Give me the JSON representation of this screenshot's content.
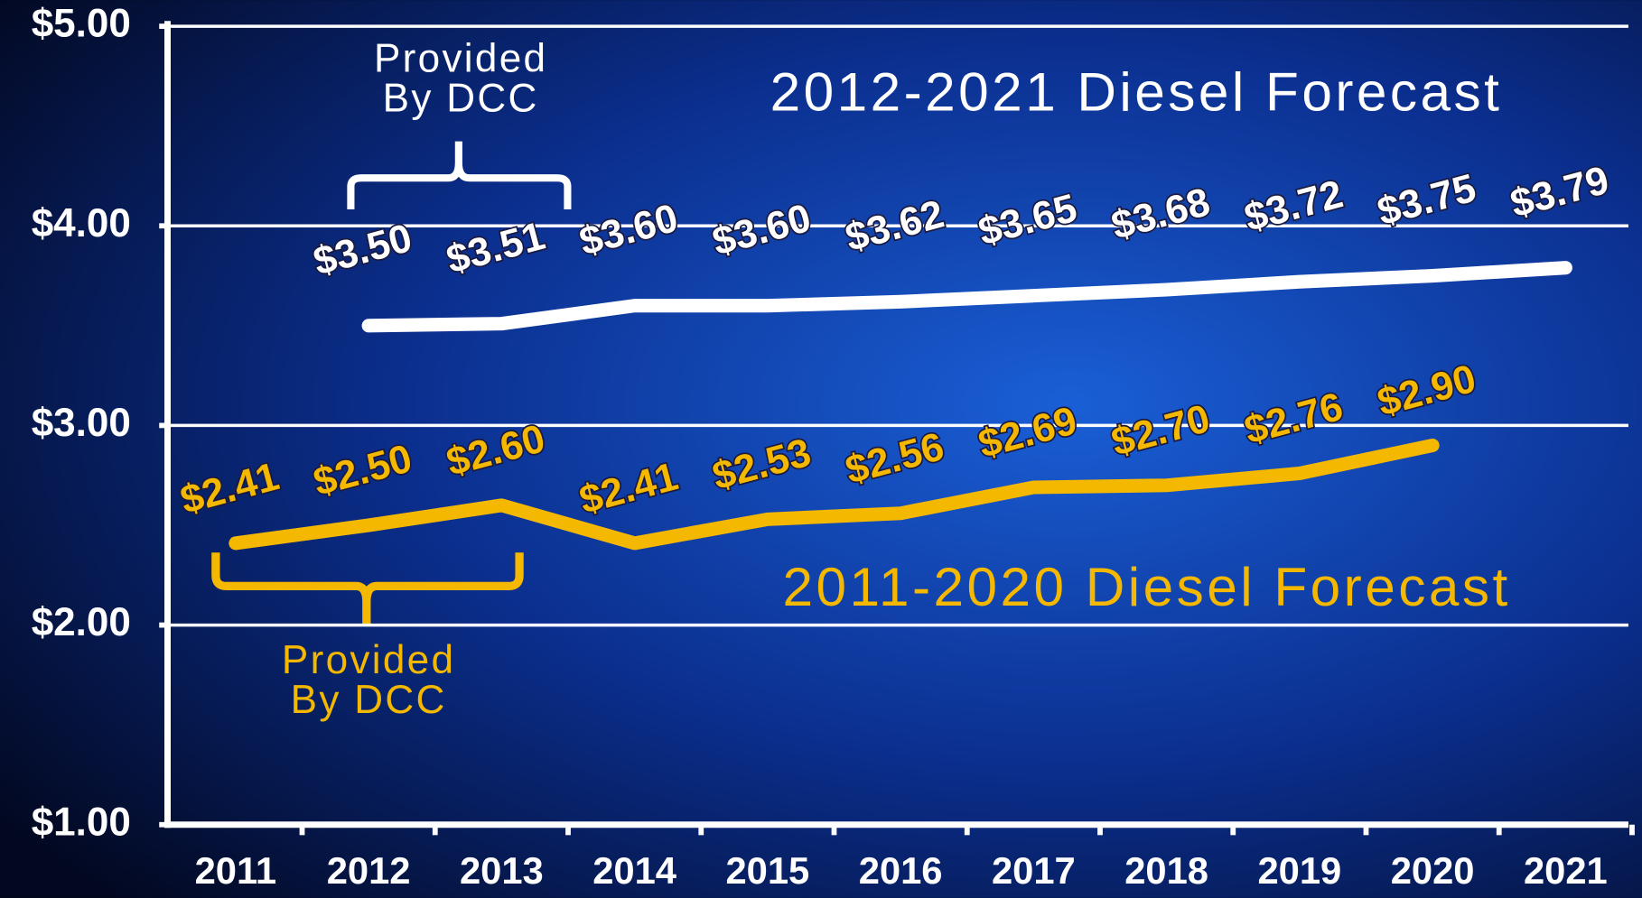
{
  "chart_data": {
    "type": "line",
    "categories": [
      "2011",
      "2012",
      "2013",
      "2014",
      "2015",
      "2016",
      "2017",
      "2018",
      "2019",
      "2020",
      "2021"
    ],
    "series": [
      {
        "name": "2012-2021 Diesel Forecast",
        "color": "#ffffff",
        "values": [
          null,
          3.5,
          3.51,
          3.6,
          3.6,
          3.62,
          3.65,
          3.68,
          3.72,
          3.75,
          3.79
        ],
        "value_labels": [
          null,
          "$3.50",
          "$3.51",
          "$3.60",
          "$3.60",
          "$3.62",
          "$3.65",
          "$3.68",
          "$3.72",
          "$3.75",
          "$3.79"
        ]
      },
      {
        "name": "2011-2020 Diesel Forecast",
        "color": "#f5b800",
        "values": [
          2.41,
          2.5,
          2.6,
          2.41,
          2.53,
          2.56,
          2.69,
          2.7,
          2.76,
          2.9,
          null
        ],
        "value_labels": [
          "$2.41",
          "$2.50",
          "$2.60",
          "$2.41",
          "$2.53",
          "$2.56",
          "$2.69",
          "$2.70",
          "$2.76",
          "$2.90",
          null
        ]
      }
    ],
    "annotations": [
      "Provided By DCC",
      "Provided By DCC"
    ],
    "ylim": [
      1,
      5
    ],
    "yticks": [
      {
        "value": 1,
        "label": "$1.00"
      },
      {
        "value": 2,
        "label": "$2.00"
      },
      {
        "value": 3,
        "label": "$3.00"
      },
      {
        "value": 4,
        "label": "$4.00"
      },
      {
        "value": 5,
        "label": "$5.00"
      }
    ],
    "grid": true
  }
}
